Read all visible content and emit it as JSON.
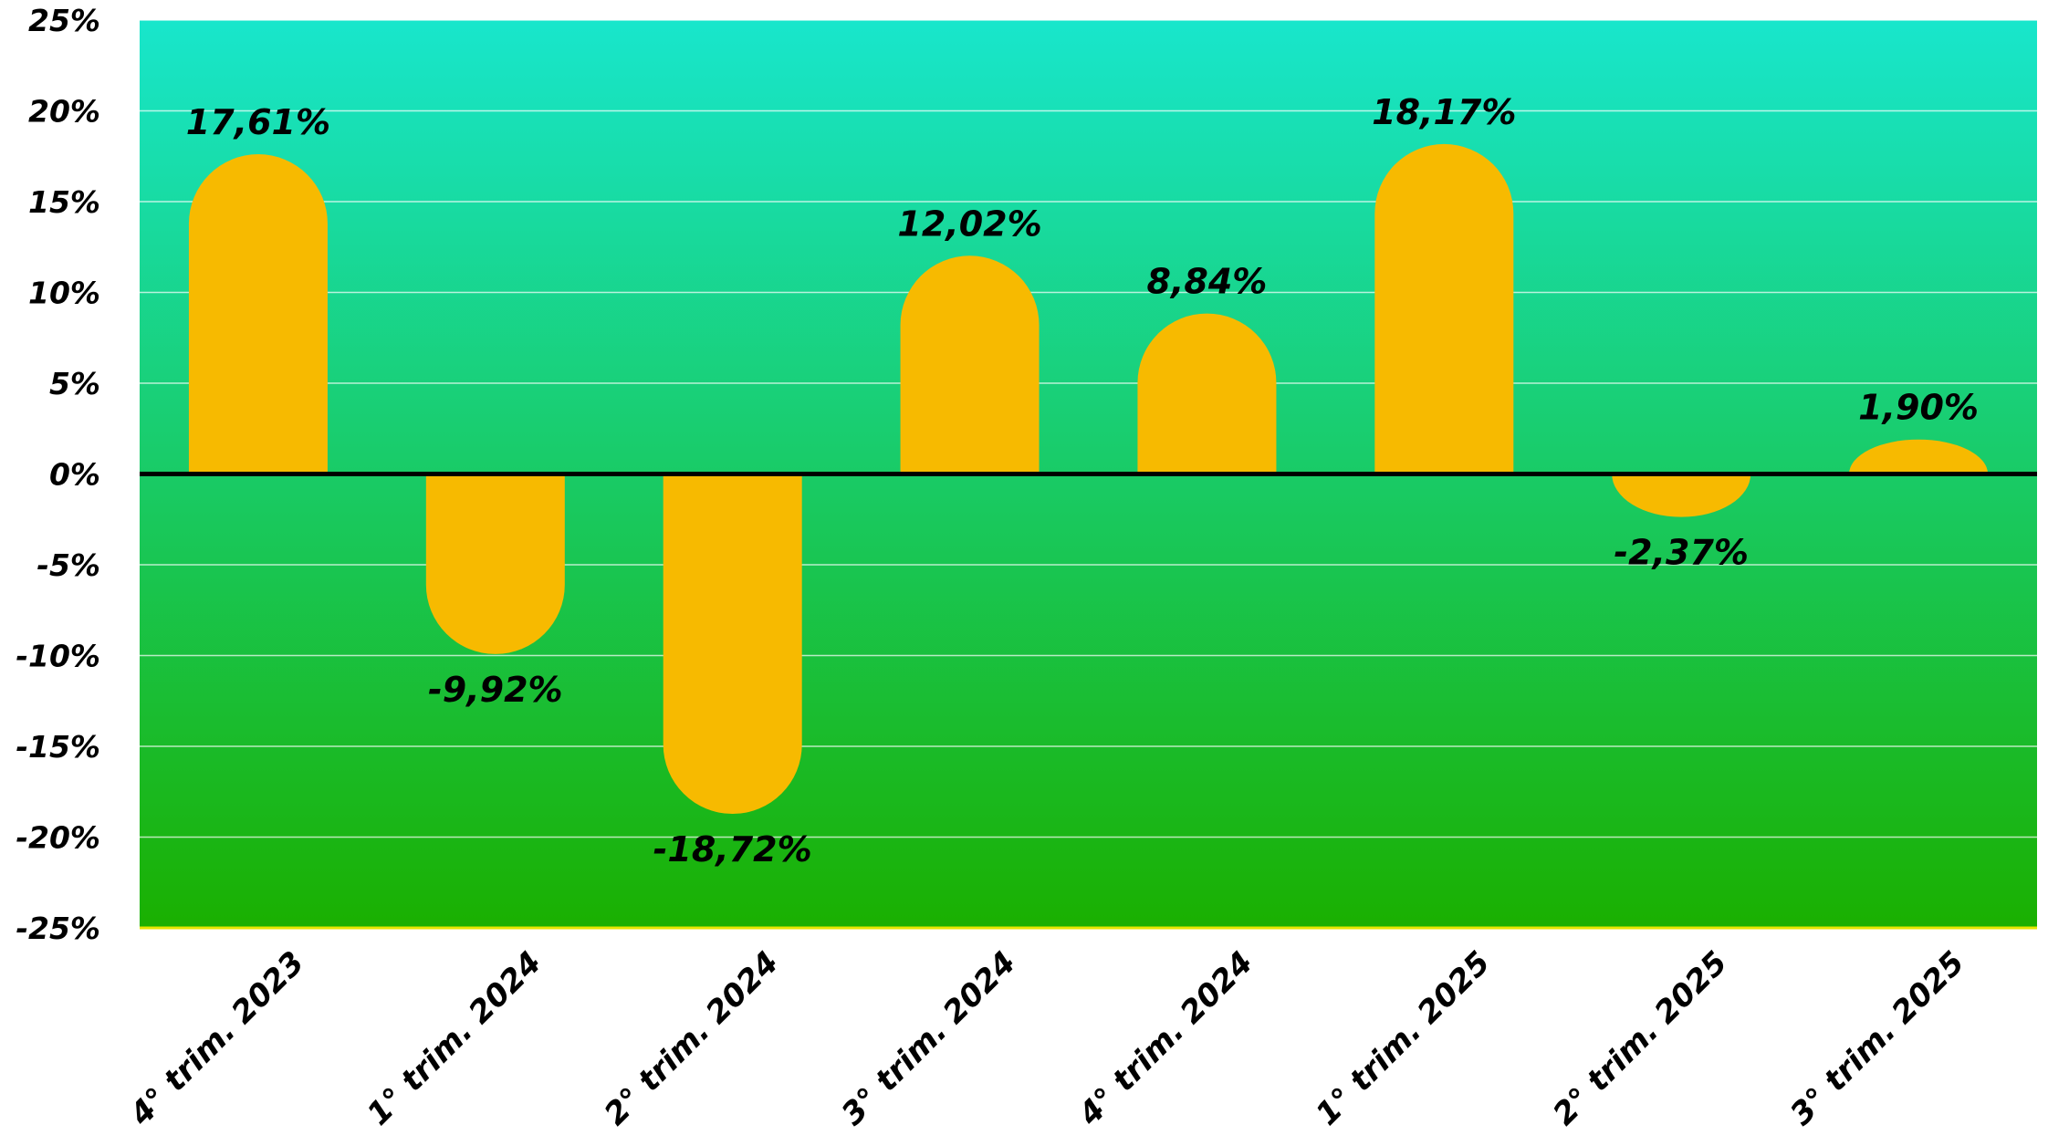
{
  "chart_data": {
    "type": "bar",
    "categories": [
      "4° trim. 2023",
      "1° trim. 2024",
      "2° trim. 2024",
      "3° trim. 2024",
      "4° trim. 2024",
      "1° trim. 2025",
      "2° trim. 2025",
      "3° trim. 2025"
    ],
    "values": [
      17.61,
      -9.92,
      -18.72,
      12.02,
      8.84,
      18.17,
      -2.37,
      1.9
    ],
    "data_labels": [
      "17,61%",
      "-9,92%",
      "-18,72%",
      "12,02%",
      "8,84%",
      "18,17%",
      "-2,37%",
      "1,90%"
    ],
    "ylim": [
      -25,
      25
    ],
    "yticks": [
      25,
      20,
      15,
      10,
      5,
      0,
      -5,
      -10,
      -15,
      -20,
      -25
    ],
    "ytick_labels": [
      "25%",
      "20%",
      "15%",
      "10%",
      "5%",
      "0%",
      "-5%",
      "-10%",
      "-15%",
      "-20%",
      "-25%"
    ],
    "title": "",
    "xlabel": "",
    "ylabel": "",
    "grid": true,
    "colors": {
      "bar": "#F7BA00",
      "background_top": "#18E6CC",
      "background_bottom": "#1AB000",
      "grid": "#FFFFFF",
      "zero_line": "#000000",
      "bottom_line": "#E6E600"
    }
  }
}
